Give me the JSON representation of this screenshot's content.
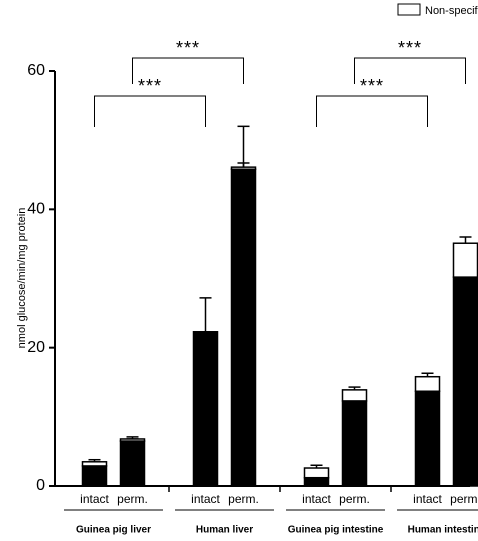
{
  "chart_data": {
    "type": "stacked_bar",
    "y_label": "nmol glucose/min/mg protein",
    "categories": [
      "intact",
      "perm.",
      "intact",
      "perm.",
      "intact",
      "perm.",
      "intact",
      "perm."
    ],
    "groups": [
      "Guinea pig liver",
      "Human liver",
      "Guinea pig intestine",
      "Human intestine"
    ],
    "series": [
      {
        "color": "#000000",
        "values": [
          2.9,
          6.5,
          22.3,
          45.8,
          1.2,
          12.3,
          13.7,
          30.2
        ],
        "errors": [
          0.2,
          0.3,
          4.9,
          6.2,
          0.2,
          0.3,
          0.3,
          2.3
        ]
      },
      {
        "name": "Non-specifi",
        "color": "#ffffff",
        "values": [
          0.6,
          0.3,
          0,
          0.3,
          1.4,
          1.6,
          2.1,
          4.9
        ],
        "errors": [
          0.3,
          0.3,
          0,
          0.6,
          0.4,
          0.4,
          0.5,
          0.9
        ]
      }
    ],
    "ylim": [
      0,
      60
    ],
    "yticks": [
      0,
      20,
      40,
      60
    ],
    "annotations": [
      {
        "text": "***",
        "from": 0,
        "to": 2
      },
      {
        "text": "***",
        "from": 1,
        "to": 3
      },
      {
        "text": "***",
        "from": 4,
        "to": 6
      },
      {
        "text": "***",
        "from": 5,
        "to": 7
      }
    ]
  }
}
